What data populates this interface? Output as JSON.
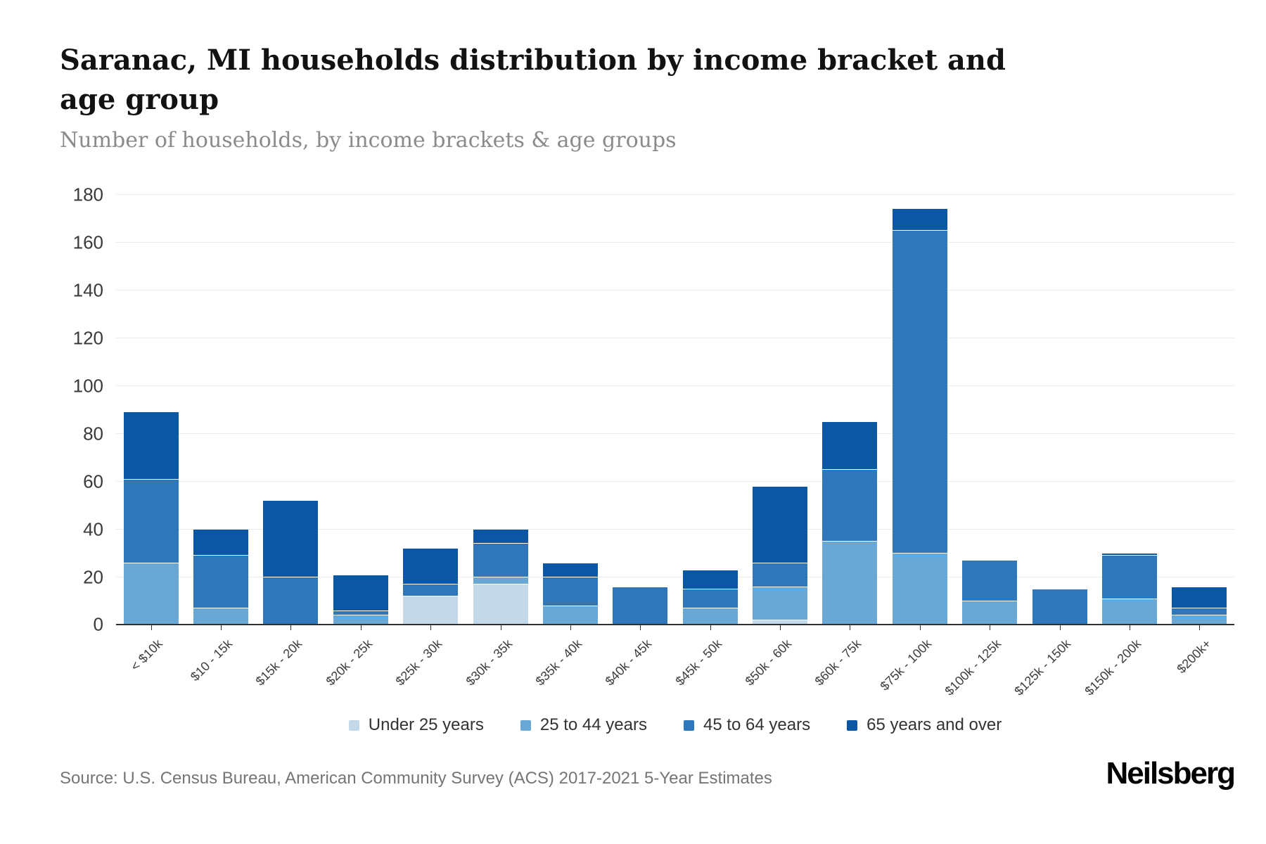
{
  "header": {
    "title": "Saranac, MI households distribution by income bracket and age group",
    "subtitle": "Number of households, by income brackets & age groups"
  },
  "chart_data": {
    "type": "bar",
    "stacked": true,
    "title": "Saranac, MI households distribution by income bracket and age group",
    "subtitle": "Number of households, by income brackets & age groups",
    "categories": [
      "< $10k",
      "$10 - 15k",
      "$15k - 20k",
      "$20k - 25k",
      "$25k - 30k",
      "$30k - 35k",
      "$35k - 40k",
      "$40k - 45k",
      "$45k - 50k",
      "$50k - 60k",
      "$60k - 75k",
      "$75k - 100k",
      "$100k - 125k",
      "$125k - 150k",
      "$150k - 200k",
      "$200k+"
    ],
    "series": [
      {
        "name": "Under 25 years",
        "color": "#c3d9ea",
        "values": [
          0,
          0,
          0,
          0,
          12,
          17,
          0,
          0,
          0,
          2,
          0,
          0,
          0,
          0,
          0,
          0
        ]
      },
      {
        "name": "25 to 44 years",
        "color": "#69a7d5",
        "values": [
          26,
          7,
          0,
          4,
          0,
          3,
          8,
          0,
          7,
          14,
          35,
          30,
          10,
          0,
          11,
          4
        ]
      },
      {
        "name": "45 to 64 years",
        "color": "#2e77b8",
        "values": [
          35,
          22,
          20,
          2,
          5,
          14,
          12,
          16,
          8,
          10,
          30,
          135,
          17,
          15,
          18,
          3
        ]
      },
      {
        "name": "65 years and over",
        "color": "#0c57a4",
        "values": [
          28,
          11,
          32,
          15,
          15,
          6,
          6,
          0,
          8,
          32,
          20,
          9,
          0,
          0,
          1,
          9
        ]
      }
    ],
    "totals": [
      89,
      40,
      52,
      21,
      32,
      40,
      26,
      16,
      23,
      58,
      85,
      174,
      27,
      15,
      30,
      16
    ],
    "xlabel": "",
    "ylabel": "",
    "ylim": [
      0,
      180
    ],
    "yticks": [
      0,
      20,
      40,
      60,
      80,
      100,
      120,
      140,
      160,
      180
    ],
    "grid": "horizontal",
    "legend_position": "bottom"
  },
  "footer": {
    "source": "Source: U.S. Census Bureau, American Community Survey (ACS) 2017-2021 5-Year Estimates",
    "brand": "Neilsberg"
  }
}
